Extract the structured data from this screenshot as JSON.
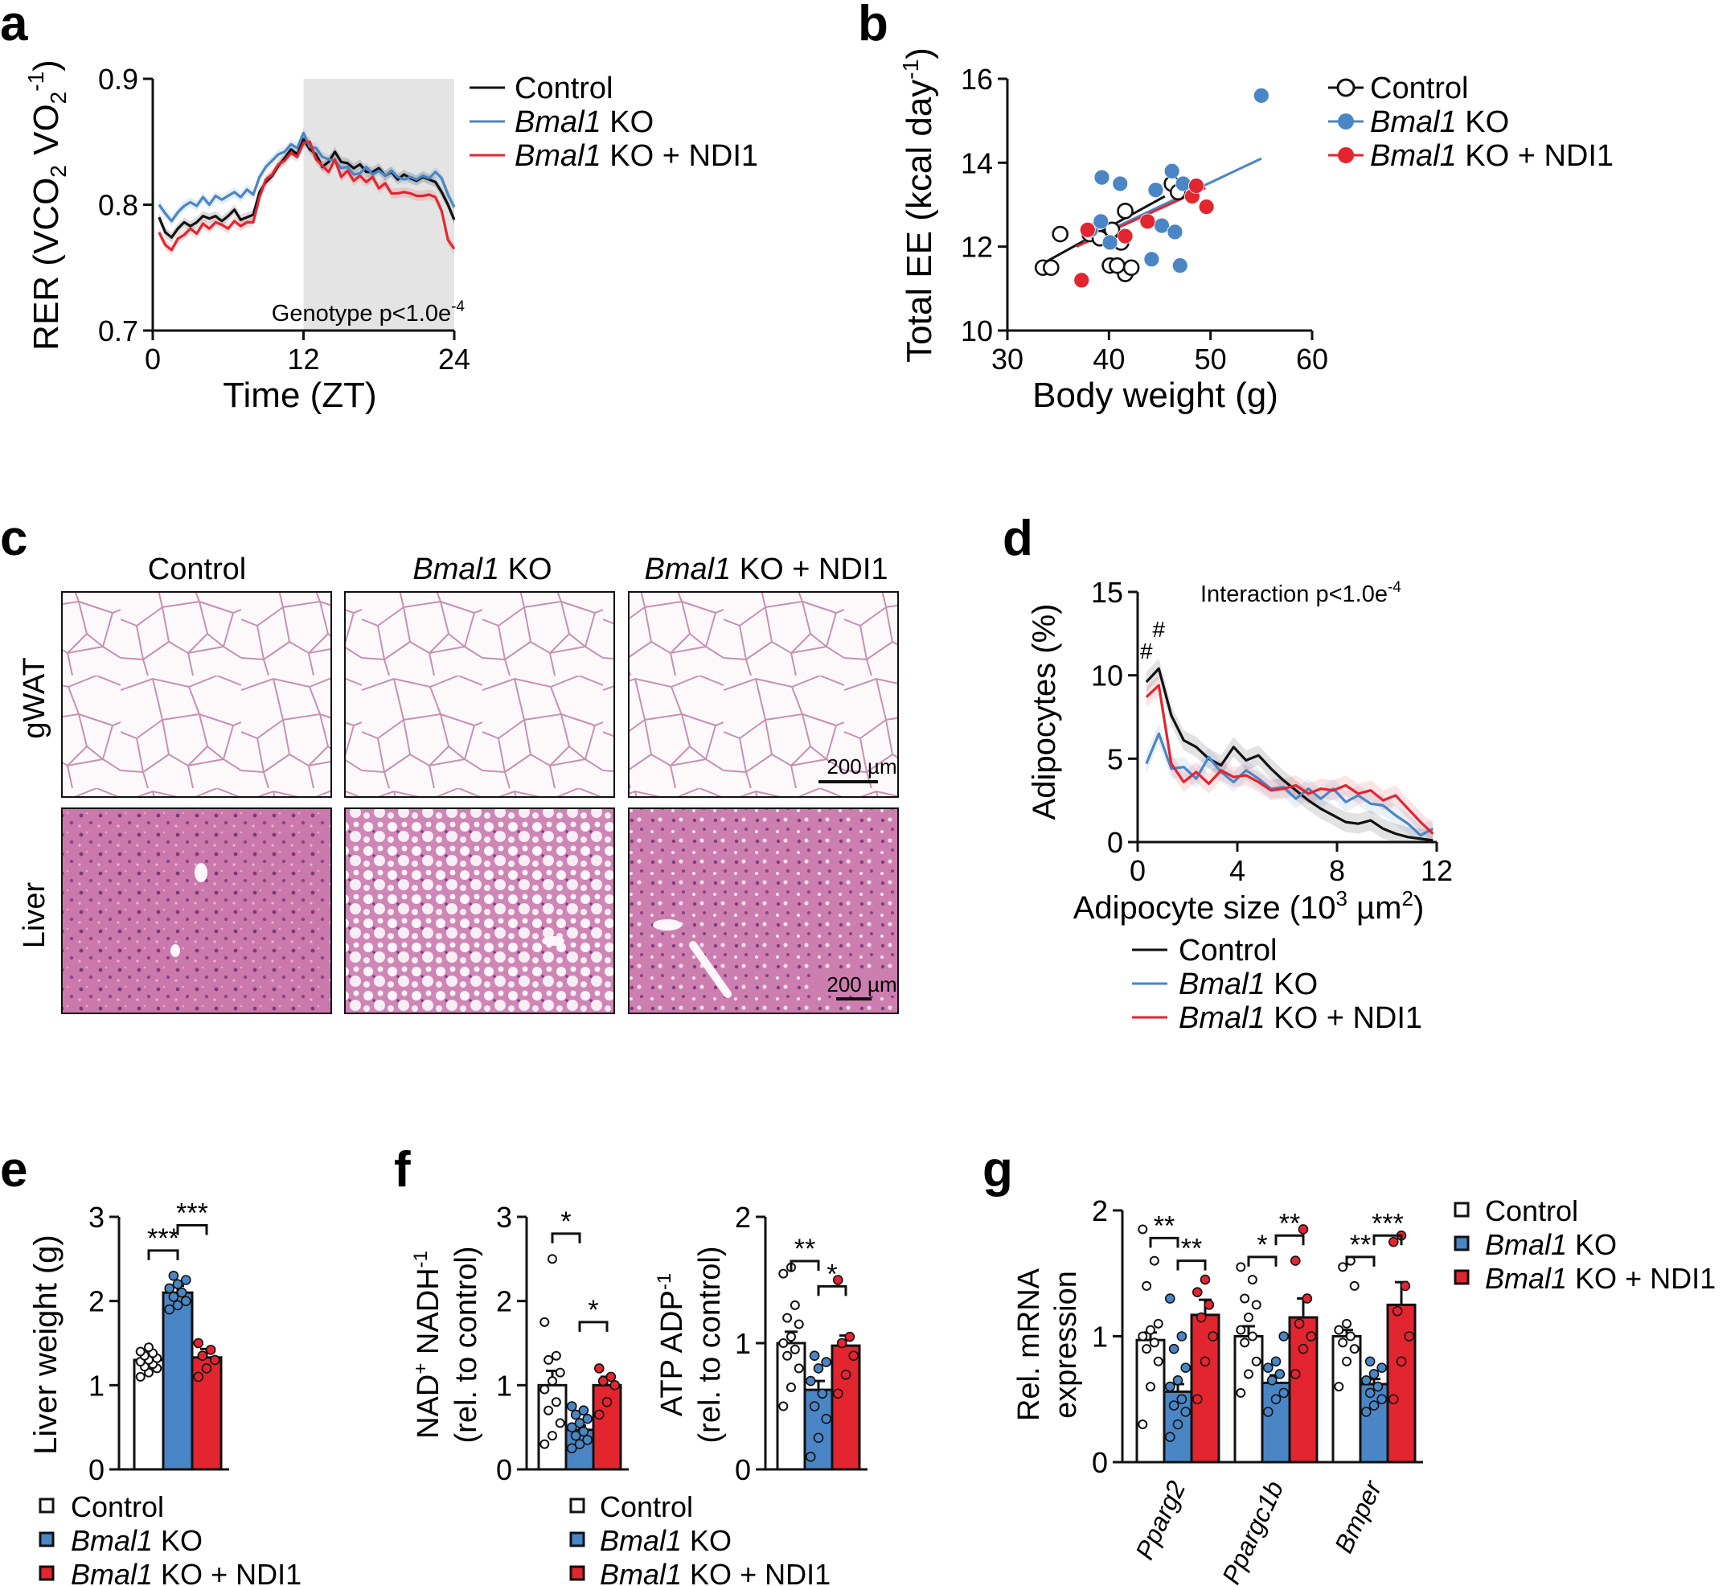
{
  "colors": {
    "control": "#111111",
    "ko": "#4a86c5",
    "ndi1": "#e32530",
    "band": "#e4e4e4",
    "he_light": "#f9f1f5",
    "he_dark": "#b9679c"
  },
  "panel_letters": [
    "a",
    "b",
    "c",
    "d",
    "e",
    "f",
    "g"
  ],
  "legend": {
    "control": "Control",
    "ko_gene": "Bmal1",
    "ko_suffix": " KO",
    "ndi1_suffix": " KO + NDI1"
  },
  "chart_data": [
    {
      "id": "a",
      "type": "line",
      "ylabel_parts": [
        "RER (VCO",
        "2",
        " VO",
        "2",
        "-1",
        ")"
      ],
      "xlabel": "Time (ZT)",
      "xlim": [
        0,
        24
      ],
      "ylim": [
        0.7,
        0.9
      ],
      "xticks": [
        0,
        12,
        24
      ],
      "ytick_labels": [
        "0.7",
        "0.8",
        "0.9"
      ],
      "yticks": [
        0.7,
        0.8,
        0.9
      ],
      "shade": [
        12,
        24
      ],
      "annotation": {
        "text": "Genotype p<1.0e",
        "sup": "-4"
      },
      "x": [
        0.5,
        1,
        1.5,
        2,
        2.5,
        3,
        3.5,
        4,
        4.5,
        5,
        5.5,
        6,
        6.5,
        7,
        7.5,
        8,
        8.5,
        9,
        9.5,
        10,
        10.5,
        11,
        11.5,
        12,
        12.5,
        13,
        13.5,
        14,
        14.5,
        15,
        15.5,
        16,
        16.5,
        17,
        17.5,
        18,
        18.5,
        19,
        19.5,
        20,
        20.5,
        21,
        21.5,
        22,
        22.5,
        23,
        23.5,
        24
      ],
      "series": [
        {
          "name": "Control",
          "values": [
            0.79,
            0.778,
            0.774,
            0.781,
            0.786,
            0.783,
            0.786,
            0.791,
            0.789,
            0.791,
            0.787,
            0.791,
            0.796,
            0.788,
            0.79,
            0.792,
            0.81,
            0.818,
            0.823,
            0.831,
            0.837,
            0.844,
            0.84,
            0.852,
            0.844,
            0.84,
            0.83,
            0.834,
            0.842,
            0.834,
            0.833,
            0.829,
            0.832,
            0.826,
            0.826,
            0.829,
            0.823,
            0.826,
            0.82,
            0.824,
            0.821,
            0.819,
            0.822,
            0.82,
            0.818,
            0.81,
            0.8,
            0.788
          ]
        },
        {
          "name": "Bmal1 KO",
          "values": [
            0.8,
            0.793,
            0.787,
            0.794,
            0.799,
            0.802,
            0.799,
            0.806,
            0.8,
            0.807,
            0.804,
            0.807,
            0.81,
            0.806,
            0.812,
            0.808,
            0.822,
            0.83,
            0.835,
            0.84,
            0.842,
            0.848,
            0.845,
            0.857,
            0.846,
            0.845,
            0.838,
            0.836,
            0.835,
            0.829,
            0.83,
            0.824,
            0.825,
            0.83,
            0.824,
            0.827,
            0.823,
            0.827,
            0.822,
            0.82,
            0.822,
            0.82,
            0.823,
            0.821,
            0.826,
            0.821,
            0.808,
            0.798
          ]
        },
        {
          "name": "Bmal1 KO + NDI1",
          "values": [
            0.778,
            0.768,
            0.764,
            0.773,
            0.776,
            0.781,
            0.777,
            0.785,
            0.781,
            0.786,
            0.784,
            0.781,
            0.787,
            0.783,
            0.786,
            0.786,
            0.806,
            0.82,
            0.824,
            0.832,
            0.835,
            0.841,
            0.838,
            0.849,
            0.85,
            0.836,
            0.831,
            0.826,
            0.836,
            0.822,
            0.827,
            0.819,
            0.823,
            0.818,
            0.822,
            0.813,
            0.817,
            0.809,
            0.809,
            0.81,
            0.809,
            0.807,
            0.807,
            0.808,
            0.806,
            0.795,
            0.772,
            0.765
          ]
        }
      ]
    },
    {
      "id": "b",
      "type": "scatter",
      "ylabel_parts": [
        "Total EE (kcal day",
        "-1",
        ")"
      ],
      "xlabel": "Body weight (g)",
      "xlim": [
        30,
        60
      ],
      "ylim": [
        10,
        16
      ],
      "xticks": [
        30,
        40,
        50,
        60
      ],
      "yticks": [
        10,
        12,
        14,
        16
      ],
      "series": [
        {
          "name": "Control",
          "x": [
            33.5,
            34.3,
            35.2,
            38.1,
            39.1,
            40.3,
            40.1,
            41.2,
            41.6,
            41.6,
            40.8,
            42.2,
            46.2,
            46.8
          ],
          "y": [
            11.5,
            11.5,
            12.3,
            12.3,
            12.2,
            12.4,
            11.55,
            12.1,
            12.85,
            11.35,
            11.55,
            11.5,
            13.5,
            13.3
          ],
          "fit": [
            [
              33.5,
              11.6
            ],
            [
              45.5,
              13.2
            ]
          ]
        },
        {
          "name": "Bmal1 KO",
          "x": [
            38.2,
            39.3,
            40.1,
            41.1,
            44.2,
            44.6,
            45.2,
            46.2,
            46.5,
            47.0,
            47.3,
            55.0,
            39.2
          ],
          "y": [
            12.4,
            13.65,
            12.1,
            13.5,
            11.7,
            13.35,
            12.5,
            13.8,
            12.35,
            11.55,
            13.5,
            15.6,
            12.6
          ],
          "fit": [
            [
              37.5,
              12.1
            ],
            [
              55.0,
              14.1
            ]
          ]
        },
        {
          "name": "Bmal1 KO + NDI1",
          "x": [
            37.3,
            37.9,
            41.6,
            43.8,
            48.2,
            48.6,
            49.6
          ],
          "y": [
            11.2,
            12.4,
            12.25,
            12.6,
            13.2,
            13.45,
            12.95
          ],
          "fit": [
            [
              36.8,
              12.0
            ],
            [
              49.5,
              13.4
            ]
          ]
        }
      ]
    },
    {
      "id": "d",
      "type": "line",
      "ylabel": "Adipocytes (%)",
      "xlabel_parts": [
        "Adipocyte size (10",
        "3",
        " µm",
        "2",
        ")"
      ],
      "xlim": [
        0,
        12
      ],
      "ylim": [
        0,
        15
      ],
      "xticks": [
        0,
        4,
        8,
        12
      ],
      "yticks": [
        0,
        5,
        10,
        15
      ],
      "annotation": {
        "text": "Interaction p<1.0e",
        "sup": "-4"
      },
      "marks": [
        {
          "x": 0.35,
          "y": 11.0,
          "text": "#"
        },
        {
          "x": 0.85,
          "y": 12.3,
          "text": "#"
        }
      ],
      "x": [
        0.35,
        0.85,
        1.35,
        1.85,
        2.35,
        2.85,
        3.35,
        3.85,
        4.35,
        4.85,
        5.35,
        5.85,
        6.35,
        6.85,
        7.35,
        7.85,
        8.35,
        8.85,
        9.35,
        9.85,
        10.35,
        10.85,
        11.35,
        11.85
      ],
      "series": [
        {
          "name": "Control",
          "values": [
            9.6,
            10.4,
            7.6,
            6.1,
            5.7,
            5.0,
            4.6,
            5.7,
            4.9,
            5.2,
            4.4,
            3.7,
            3.1,
            2.5,
            2.0,
            1.6,
            1.2,
            1.1,
            1.3,
            0.8,
            0.5,
            0.3,
            0.2,
            0.1
          ]
        },
        {
          "name": "Bmal1 KO",
          "values": [
            4.7,
            6.5,
            4.4,
            4.5,
            3.8,
            5.1,
            4.2,
            3.6,
            4.3,
            3.8,
            3.2,
            3.3,
            2.6,
            3.2,
            2.6,
            3.2,
            2.4,
            2.8,
            2.3,
            2.2,
            1.6,
            1.1,
            0.4,
            0.8
          ]
        },
        {
          "name": "Bmal1 KO + NDI1",
          "values": [
            8.7,
            9.4,
            4.7,
            3.6,
            4.2,
            3.5,
            4.3,
            3.9,
            4.0,
            3.6,
            3.1,
            3.2,
            3.4,
            2.9,
            3.2,
            3.1,
            3.4,
            2.9,
            3.1,
            2.5,
            2.8,
            2.0,
            1.2,
            0.5
          ]
        }
      ]
    },
    {
      "id": "e",
      "type": "bar",
      "ylabel": "Liver weight (g)",
      "ylim": [
        0,
        3
      ],
      "yticks": [
        0,
        1,
        2,
        3
      ],
      "groups": [
        ""
      ],
      "series": [
        {
          "name": "Control",
          "values": [
            1.3
          ],
          "err": [
            0.05
          ],
          "points": [
            [
              1.1,
              1.15,
              1.2,
              1.22,
              1.25,
              1.28,
              1.3,
              1.32,
              1.35,
              1.38,
              1.4,
              1.45
            ]
          ]
        },
        {
          "name": "Bmal1 KO",
          "values": [
            2.1
          ],
          "err": [
            0.08
          ],
          "points": [
            [
              1.9,
              1.95,
              2.0,
              2.05,
              2.1,
              2.15,
              2.2,
              2.25,
              2.3
            ]
          ]
        },
        {
          "name": "Bmal1 KO + NDI1",
          "values": [
            1.33
          ],
          "err": [
            0.1
          ],
          "points": [
            [
              1.1,
              1.2,
              1.3,
              1.35,
              1.42,
              1.5
            ]
          ]
        }
      ],
      "brackets": [
        {
          "a": 0,
          "b": 1,
          "y": 2.6,
          "text": "***"
        },
        {
          "a": 1,
          "b": 2,
          "y": 2.9,
          "text": "***"
        }
      ]
    },
    {
      "id": "f1",
      "type": "bar",
      "ylabel_lines": [
        [
          "NAD",
          "+",
          " NADH",
          "-1",
          ""
        ],
        [
          "(rel. to control)"
        ]
      ],
      "ylim": [
        0,
        3
      ],
      "yticks": [
        0,
        1,
        2,
        3
      ],
      "groups": [
        ""
      ],
      "series": [
        {
          "name": "Control",
          "values": [
            1.0
          ],
          "err": [
            0.17
          ],
          "points": [
            [
              0.3,
              0.4,
              0.55,
              0.7,
              0.8,
              0.95,
              1.05,
              1.15,
              1.3,
              1.35,
              1.75,
              2.5
            ]
          ]
        },
        {
          "name": "Bmal1 KO",
          "values": [
            0.47
          ],
          "err": [
            0.05
          ],
          "points": [
            [
              0.25,
              0.3,
              0.35,
              0.4,
              0.45,
              0.5,
              0.55,
              0.6,
              0.65,
              0.7,
              0.75
            ]
          ]
        },
        {
          "name": "Bmal1 KO + NDI1",
          "values": [
            1.0
          ],
          "err": [
            0.1
          ],
          "points": [
            [
              0.65,
              0.8,
              1.0,
              1.05,
              1.1,
              1.2
            ]
          ]
        }
      ],
      "brackets": [
        {
          "a": 0,
          "b": 1,
          "y": 2.8,
          "text": "*"
        },
        {
          "a": 1,
          "b": 2,
          "y": 1.75,
          "text": "*"
        }
      ]
    },
    {
      "id": "f2",
      "type": "bar",
      "ylabel_lines": [
        [
          "ATP ADP",
          "-1",
          ""
        ],
        [
          "(rel. to control)"
        ]
      ],
      "ylim": [
        0,
        2
      ],
      "yticks": [
        0,
        1,
        2
      ],
      "groups": [
        ""
      ],
      "series": [
        {
          "name": "Control",
          "values": [
            1.0
          ],
          "err": [
            0.09
          ],
          "points": [
            [
              0.5,
              0.65,
              0.8,
              0.9,
              0.95,
              1.0,
              1.05,
              1.15,
              1.2,
              1.3,
              1.55,
              1.6
            ]
          ]
        },
        {
          "name": "Bmal1 KO",
          "values": [
            0.63
          ],
          "err": [
            0.07
          ],
          "points": [
            [
              0.1,
              0.25,
              0.4,
              0.5,
              0.6,
              0.7,
              0.8,
              0.85,
              0.9
            ]
          ]
        },
        {
          "name": "Bmal1 KO + NDI1",
          "values": [
            0.98
          ],
          "err": [
            0.08
          ],
          "points": [
            [
              0.6,
              0.75,
              0.9,
              1.0,
              1.05,
              1.5
            ]
          ]
        }
      ],
      "brackets": [
        {
          "a": 0,
          "b": 1,
          "y": 1.65,
          "text": "**"
        },
        {
          "a": 1,
          "b": 2,
          "y": 1.45,
          "text": "*"
        }
      ]
    },
    {
      "id": "g",
      "type": "bar",
      "ylabel_lines": [
        [
          "Rel. mRNA"
        ],
        [
          "expression"
        ]
      ],
      "ylim": [
        0,
        2
      ],
      "yticks": [
        0,
        1,
        2
      ],
      "groups": [
        "Pparg2",
        "Ppargc1b",
        "Bmper"
      ],
      "series": [
        {
          "name": "Control",
          "values": [
            0.97,
            1.0,
            1.0
          ],
          "err": [
            0.06,
            0.08,
            0.05
          ],
          "points": [
            [
              0.3,
              0.6,
              0.8,
              0.9,
              0.95,
              1.0,
              1.05,
              1.1,
              1.4,
              1.6,
              1.85
            ],
            [
              0.55,
              0.7,
              0.8,
              0.95,
              1.0,
              1.05,
              1.15,
              1.25,
              1.3,
              1.45,
              1.55
            ],
            [
              0.6,
              0.8,
              0.9,
              0.95,
              1.0,
              1.05,
              1.1,
              1.4,
              1.55,
              1.6
            ]
          ]
        },
        {
          "name": "Bmal1 KO",
          "values": [
            0.56,
            0.63,
            0.62
          ],
          "err": [
            0.06,
            0.06,
            0.04
          ],
          "points": [
            [
              0.2,
              0.3,
              0.4,
              0.45,
              0.5,
              0.6,
              0.65,
              0.75,
              0.9,
              1.0,
              1.3
            ],
            [
              0.4,
              0.5,
              0.55,
              0.65,
              0.7,
              0.75,
              0.8,
              1.0
            ],
            [
              0.4,
              0.45,
              0.5,
              0.55,
              0.6,
              0.65,
              0.7,
              0.75,
              0.8
            ]
          ]
        },
        {
          "name": "Bmal1 KO + NDI1",
          "values": [
            1.17,
            1.15,
            1.25
          ],
          "err": [
            0.12,
            0.15,
            0.18
          ],
          "points": [
            [
              0.5,
              0.8,
              1.0,
              1.15,
              1.25,
              1.35,
              1.45
            ],
            [
              0.7,
              0.9,
              1.0,
              1.1,
              1.3,
              1.6,
              1.85
            ],
            [
              0.5,
              0.8,
              1.0,
              1.2,
              1.4,
              1.75,
              1.8
            ]
          ]
        }
      ],
      "brackets": [
        {
          "group": 0,
          "a": 0,
          "b": 1,
          "y": 1.78,
          "text": "**"
        },
        {
          "group": 0,
          "a": 1,
          "b": 2,
          "y": 1.6,
          "text": "**"
        },
        {
          "group": 1,
          "a": 0,
          "b": 1,
          "y": 1.63,
          "text": "*"
        },
        {
          "group": 1,
          "a": 1,
          "b": 2,
          "y": 1.8,
          "text": "**"
        },
        {
          "group": 2,
          "a": 0,
          "b": 1,
          "y": 1.63,
          "text": "**"
        },
        {
          "group": 2,
          "a": 1,
          "b": 2,
          "y": 1.8,
          "text": "***"
        }
      ]
    }
  ],
  "panel_c": {
    "columns": [
      {
        "plain": "Control"
      },
      {
        "italic": "Bmal1",
        "plain": " KO"
      },
      {
        "italic": "Bmal1",
        "plain": " KO + NDI1"
      }
    ],
    "rows": [
      "gWAT",
      "Liver"
    ],
    "scale_bar": "200 µm"
  }
}
